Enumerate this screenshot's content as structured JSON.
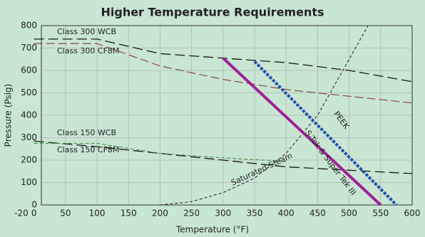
{
  "chart_data": {
    "type": "line",
    "title": "Higher Temperature Requirements",
    "x_label": "Temperature (°F)",
    "y_label": "Pressure (Psig)",
    "xlim": [
      -20,
      600
    ],
    "ylim": [
      0,
      800
    ],
    "xticks": [
      -20,
      0,
      50,
      100,
      150,
      200,
      250,
      300,
      350,
      400,
      450,
      500,
      550,
      600
    ],
    "yticks": [
      0,
      100,
      200,
      300,
      400,
      500,
      600,
      700,
      800
    ],
    "grid": true,
    "series": [
      {
        "name": "Class 300 WCB",
        "color": "#1a1a1a",
        "dash": "14 6",
        "width": 1.3,
        "x": [
          0,
          100,
          200,
          300,
          400,
          500,
          600
        ],
        "values": [
          740,
          740,
          675,
          655,
          635,
          600,
          550
        ]
      },
      {
        "name": "Class 300 CF8M",
        "color": "#8b3a3a",
        "dash": "12 5",
        "width": 1.1,
        "x": [
          0,
          100,
          200,
          300,
          400,
          500,
          600
        ],
        "values": [
          720,
          720,
          620,
          560,
          515,
          485,
          455
        ]
      },
      {
        "name": "Class 150 WCB",
        "color": "#1a1a1a",
        "dash": "14 6",
        "width": 1.3,
        "x": [
          0,
          100,
          200,
          300,
          400,
          500,
          600
        ],
        "values": [
          285,
          260,
          230,
          200,
          170,
          155,
          140
        ]
      },
      {
        "name": "Class 150 CF8M",
        "color": "#3a8a3a",
        "dash": "5 3",
        "width": 1,
        "x": [
          0,
          100,
          200,
          300,
          400
        ],
        "values": [
          275,
          275,
          230,
          210,
          195
        ]
      },
      {
        "name": "Saturated Steam",
        "color": "#1a1a1a",
        "dash": "4 3",
        "width": 1,
        "x": [
          200,
          250,
          300,
          350,
          400,
          450,
          500,
          530
        ],
        "values": [
          0,
          15,
          55,
          120,
          230,
          400,
          650,
          800
        ]
      },
      {
        "name": "S-Tek & Super Tek III",
        "color": "#a0209a",
        "dash": "",
        "width": 4,
        "x": [
          300,
          550
        ],
        "values": [
          655,
          0
        ]
      },
      {
        "name": "PEEK",
        "color": "#1f4fb0",
        "dash": "4 2",
        "width": 4,
        "x": [
          350,
          575
        ],
        "values": [
          640,
          0
        ]
      }
    ]
  }
}
